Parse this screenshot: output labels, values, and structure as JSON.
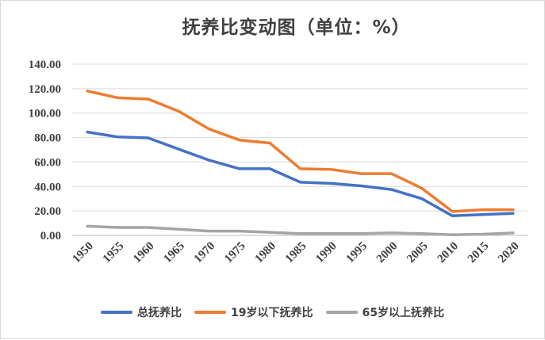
{
  "chart_data": {
    "type": "line",
    "title": "抚养比变动图（单位：%）",
    "x": [
      "1950",
      "1955",
      "1960",
      "1965",
      "1970",
      "1975",
      "1980",
      "1985",
      "1990",
      "1995",
      "2000",
      "2005",
      "2010",
      "2015",
      "2020"
    ],
    "ylim": [
      0,
      140
    ],
    "yticks": [
      "0.00",
      "20.00",
      "40.00",
      "60.00",
      "80.00",
      "100.00",
      "120.00",
      "140.00"
    ],
    "grid": true,
    "legend_position": "bottom",
    "series": [
      {
        "name": "总抚养比",
        "color": "#4472c4",
        "values": [
          84.5,
          80.5,
          79.7,
          70.5,
          61.5,
          54.5,
          54.5,
          43.5,
          42.5,
          40.5,
          37.5,
          30.0,
          16.0,
          17.0,
          18.0
        ]
      },
      {
        "name": "19岁以下抚养比",
        "color": "#ed7d31",
        "values": [
          118.0,
          112.5,
          111.5,
          101.5,
          87.0,
          78.0,
          75.5,
          54.5,
          54.0,
          50.5,
          50.5,
          38.5,
          19.5,
          21.0,
          21.0
        ]
      },
      {
        "name": "65岁以上抚养比",
        "color": "#a5a5a5",
        "values": [
          7.5,
          6.5,
          6.5,
          5.0,
          3.5,
          3.5,
          2.5,
          1.5,
          1.5,
          1.5,
          2.0,
          1.5,
          0.5,
          1.0,
          2.0
        ]
      }
    ]
  }
}
